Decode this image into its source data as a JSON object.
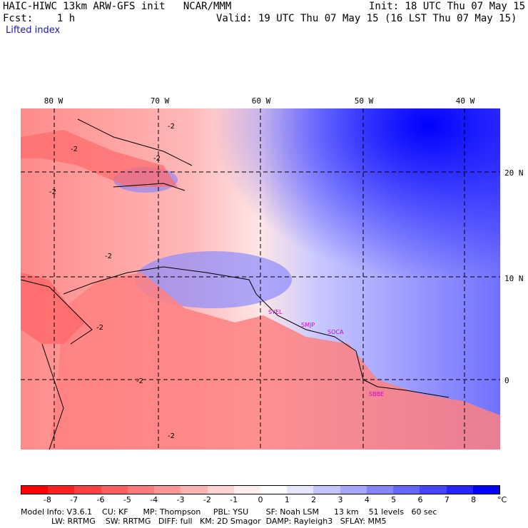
{
  "header": {
    "title": "HAIC-HIWC 13km ARW-GFS init   NCAR/MMM",
    "init": "Init: 18 UTC Thu 07 May 15",
    "fcst_label": "Fcst:    1 h",
    "valid": "Valid: 19 UTC Thu 07 May 15 (16 LST Thu 07 May 15)",
    "field": "Lifted index"
  },
  "map": {
    "lon_labels": [
      "80 W",
      "70 W",
      "60 W",
      "50 W",
      "40 W"
    ],
    "lat_labels": [
      "20 N",
      "10 N",
      "0"
    ],
    "contour_labels": [
      "-2",
      "-2",
      "-2",
      "-2",
      "-2",
      "-2",
      "-2",
      "-2"
    ],
    "sites": [
      "SYEL",
      "SMJP",
      "SOCA",
      "SBBE"
    ]
  },
  "colorbar": {
    "labels": [
      "-8",
      "-7",
      "-6",
      "-5",
      "-4",
      "-3",
      "-2",
      "-1",
      "0",
      "1",
      "2",
      "3",
      "4",
      "5",
      "6",
      "7",
      "8"
    ],
    "unit": "°C",
    "colors": [
      "#ff0000",
      "#ff2020",
      "#ff4040",
      "#ff5e5e",
      "#ff7a7a",
      "#ff9696",
      "#ffb4b4",
      "#ffd2d2",
      "#ffeeee",
      "#ffffff",
      "#e6e6ff",
      "#c6c6ff",
      "#a6a6ff",
      "#8585ff",
      "#6565ff",
      "#4545ff",
      "#2424ff",
      "#0000ff"
    ]
  },
  "footer": {
    "line1": "Model Info: V3.6.1    CU: KF      MP: Thompson     PBL: YSU       SF: Noah LSM      13 km    51 levels   60 sec",
    "line2": "LW: RRTMG    SW: RRTMG   DIFF: full   KM: 2D Smagor  DAMP: Rayleigh3   SFLAY: MM5"
  }
}
